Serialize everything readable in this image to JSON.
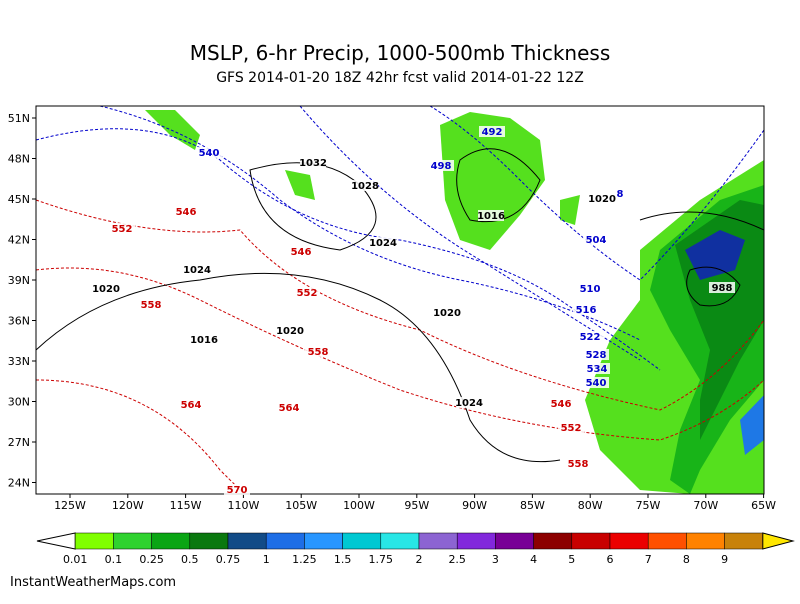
{
  "header": {
    "title": "MSLP, 6-hr Precip, 1000-500mb Thickness",
    "subtitle": "GFS 2014-01-20 18Z 42hr fcst valid 2014-01-22 12Z"
  },
  "map": {
    "lat_labels": [
      "51N",
      "48N",
      "45N",
      "42N",
      "39N",
      "36N",
      "33N",
      "30N",
      "27N",
      "24N"
    ],
    "lon_labels": [
      "125W",
      "120W",
      "115W",
      "110W",
      "105W",
      "100W",
      "95W",
      "90W",
      "85W",
      "80W",
      "75W",
      "70W",
      "65W"
    ],
    "thickness_labels_cold": [
      "492",
      "498",
      "540",
      "504",
      "510",
      "516",
      "522",
      "528",
      "534",
      "540",
      "8"
    ],
    "thickness_labels_warm": [
      "552",
      "546",
      "546",
      "552",
      "558",
      "558",
      "564",
      "564",
      "570",
      "546",
      "552",
      "558"
    ],
    "pressure_labels": [
      "1032",
      "1028",
      "1016",
      "1024",
      "1024",
      "1020",
      "1020",
      "1016",
      "1020",
      "1024",
      "1020",
      "988"
    ]
  },
  "colorbar": {
    "labels": [
      "0.01",
      "0.1",
      "0.25",
      "0.5",
      "0.75",
      "1",
      "1.25",
      "1.5",
      "1.75",
      "2",
      "2.5",
      "3",
      "4",
      "5",
      "6",
      "7",
      "8",
      "9"
    ]
  },
  "footer": {
    "credit": "InstantWeatherMaps.com"
  }
}
